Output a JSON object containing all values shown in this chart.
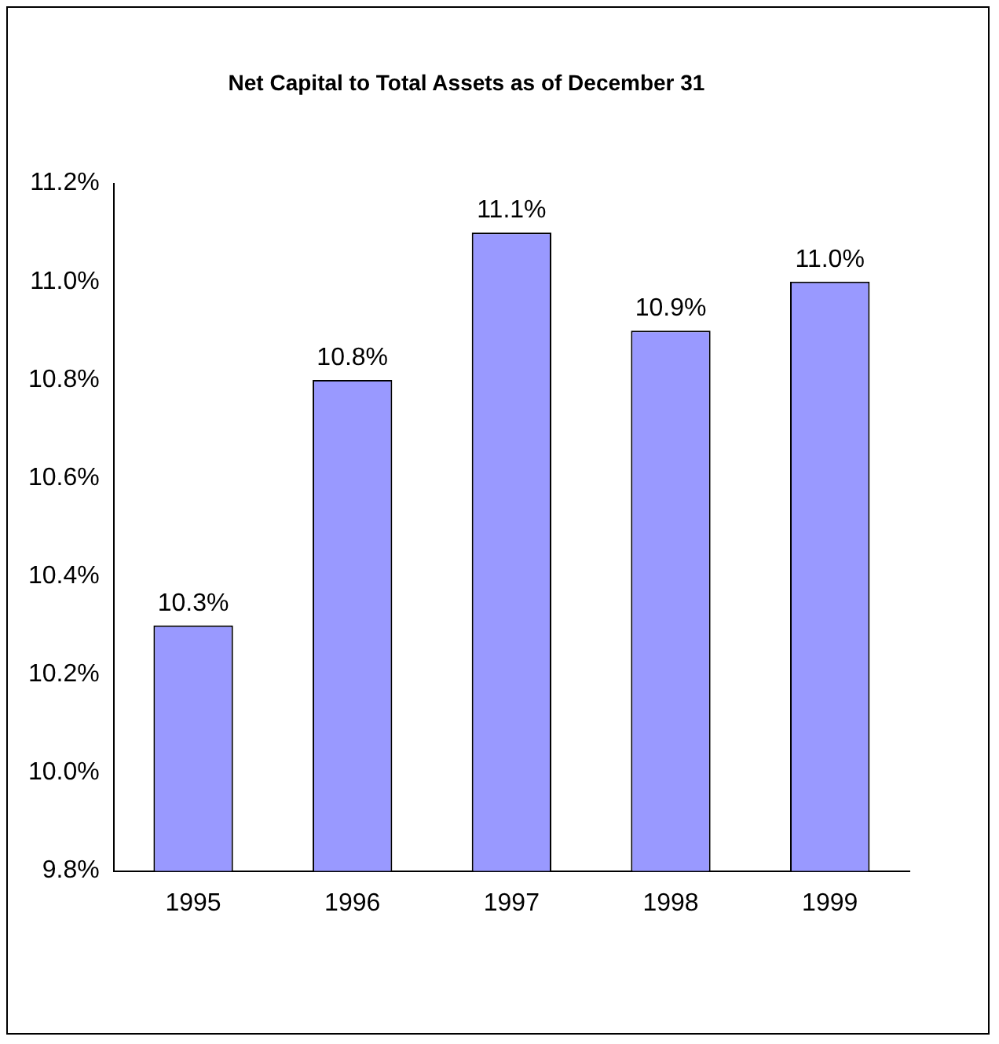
{
  "chart_data": {
    "type": "bar",
    "title": "Net Capital to Total Assets as of December 31",
    "categories": [
      "1995",
      "1996",
      "1997",
      "1998",
      "1999"
    ],
    "values": [
      10.3,
      10.8,
      11.1,
      10.9,
      11.0
    ],
    "value_labels": [
      "10.3%",
      "10.8%",
      "11.1%",
      "10.9%",
      "11.0%"
    ],
    "color": "#9999ff",
    "ylim": [
      9.8,
      11.2
    ],
    "yticks": [
      {
        "value": 9.8,
        "label": "9.8%"
      },
      {
        "value": 10.0,
        "label": "10.0%"
      },
      {
        "value": 10.2,
        "label": "10.2%"
      },
      {
        "value": 10.4,
        "label": "10.4%"
      },
      {
        "value": 10.6,
        "label": "10.6%"
      },
      {
        "value": 10.8,
        "label": "10.8%"
      },
      {
        "value": 11.0,
        "label": "11.0%"
      },
      {
        "value": 11.2,
        "label": "11.2%"
      }
    ],
    "grid": false,
    "legend": false
  }
}
